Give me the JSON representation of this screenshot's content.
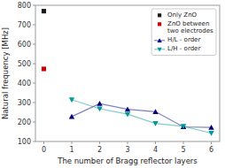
{
  "chart_data": {
    "type": "line",
    "x_label": "The number of Bragg reflector layers",
    "y_label": "Natural frequency [MHz]",
    "xlim": [
      -0.3,
      6.3
    ],
    "ylim": [
      100,
      800
    ],
    "xticks": [
      0,
      1,
      2,
      3,
      4,
      5,
      6
    ],
    "yticks": [
      100,
      200,
      300,
      400,
      500,
      600,
      700,
      800
    ],
    "grid": false,
    "legend": "upper right",
    "series": [
      {
        "name": "Only ZnO",
        "color": "#1a1a1a",
        "marker": "square",
        "line_style": "none",
        "x": [
          0
        ],
        "values": [
          770
        ]
      },
      {
        "name": "ZnO between\ntwo electrodes",
        "color": "#cc0000",
        "marker": "square",
        "line_style": "none",
        "x": [
          0
        ],
        "values": [
          473
        ]
      },
      {
        "name": "H/L - order",
        "color": "#000080",
        "marker": "triangle-up",
        "line_style": "solid",
        "x": [
          1,
          2,
          3,
          4,
          5,
          6
        ],
        "values": [
          228,
          295,
          265,
          253,
          175,
          172
        ]
      },
      {
        "name": "L/H - order",
        "color": "#009999",
        "marker": "triangle-down",
        "line_style": "solid",
        "x": [
          1,
          2,
          3,
          4,
          5,
          6
        ],
        "values": [
          315,
          268,
          240,
          193,
          178,
          143
        ]
      }
    ]
  }
}
